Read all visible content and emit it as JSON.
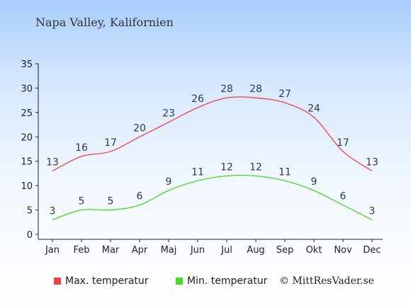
{
  "title": "Napa Valley, Kalifornien",
  "credit": "© MittResVader.se",
  "colors": {
    "max": "#ee4444",
    "min": "#44dd22",
    "axis": "#222222"
  },
  "chart_data": {
    "type": "line",
    "categories": [
      "Jan",
      "Feb",
      "Mar",
      "Apr",
      "Maj",
      "Jun",
      "Jul",
      "Aug",
      "Sep",
      "Okt",
      "Nov",
      "Dec"
    ],
    "ylim": [
      0,
      35
    ],
    "yticks": [
      0,
      5,
      10,
      15,
      20,
      25,
      30,
      35
    ],
    "grid": false,
    "legend_position": "bottom",
    "series": [
      {
        "name": "Max. temperatur",
        "color": "#ee4444",
        "labelColor": "#2b3a55",
        "values": [
          13,
          16,
          17,
          20,
          23,
          26,
          28,
          28,
          27,
          24,
          17,
          13
        ]
      },
      {
        "name": "Min. temperatur",
        "color": "#44dd22",
        "labelColor": "#2b3a55",
        "values": [
          3,
          5,
          5,
          6,
          9,
          11,
          12,
          12,
          11,
          9,
          6,
          3
        ]
      }
    ]
  }
}
